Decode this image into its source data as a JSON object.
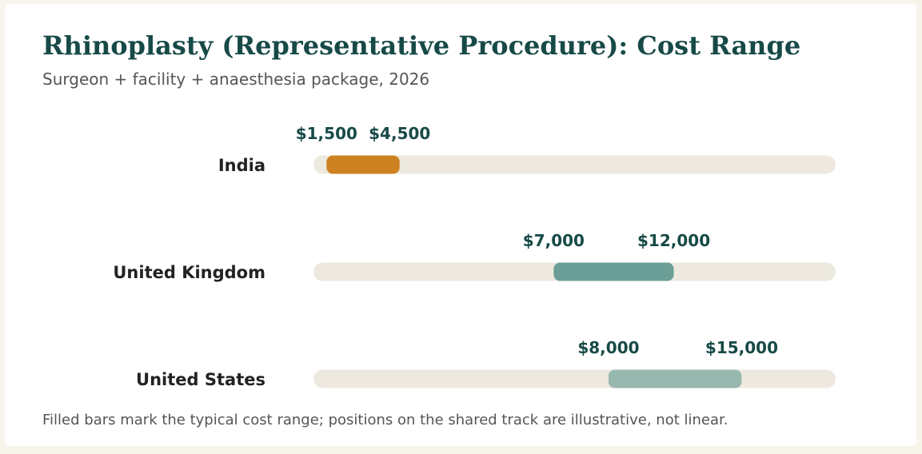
{
  "title": "Rhinoplasty (Representative Procedure): Cost Range",
  "subtitle": "Surgeon + facility + anaesthesia package, 2026",
  "footnote": "Filled bars mark the typical cost range; positions on the shared track are illustrative, not linear.",
  "colors": {
    "track": "#ede9df",
    "label": "#222222",
    "value_label": "#174a47"
  },
  "chart_data": {
    "type": "bar",
    "orientation": "horizontal-range",
    "categories": [
      "India",
      "United Kingdom",
      "United States"
    ],
    "series": [
      {
        "values": [
          {
            "min": 1500,
            "max": 4500,
            "min_label": "$1,500",
            "max_label": "$4,500",
            "color": "#cd8120"
          },
          {
            "min": 7000,
            "max": 12000,
            "min_label": "$7,000",
            "max_label": "$12,000",
            "color": "#6b9e96"
          },
          {
            "min": 8000,
            "max": 15000,
            "min_label": "$8,000",
            "max_label": "$15,000",
            "color": "#97b8ae"
          }
        ]
      }
    ],
    "range_fractions": [
      {
        "start": 0.025,
        "end": 0.165
      },
      {
        "start": 0.46,
        "end": 0.69
      },
      {
        "start": 0.565,
        "end": 0.82
      }
    ],
    "grid": false,
    "legend": "none"
  }
}
